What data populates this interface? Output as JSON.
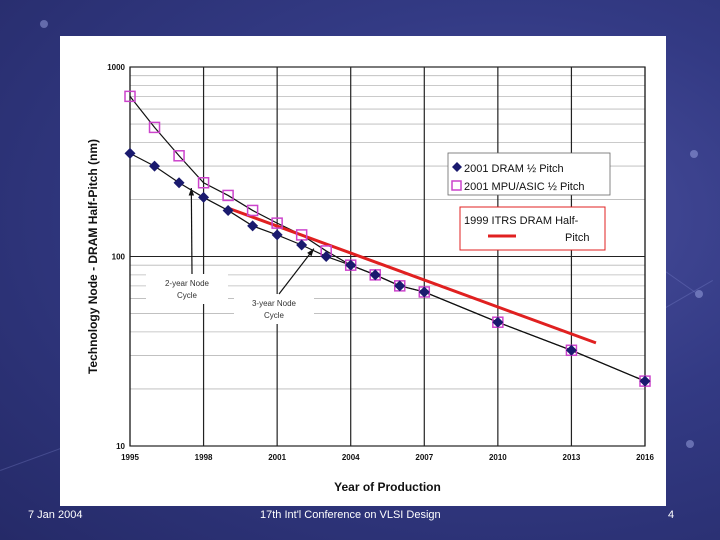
{
  "footer": {
    "date": "7 Jan 2004",
    "conference": "17th Int'l Conference on VLSI Design",
    "page_number": "4"
  },
  "colors": {
    "slide_background": "#333a84",
    "dram_series": "#1a1a6e",
    "mpu_series": "#cc44cc",
    "itrs_line": "#e02020"
  },
  "chart_data": {
    "type": "line",
    "xlabel": "Year of Production",
    "ylabel": "Technology Node - DRAM Half-Pitch (nm)",
    "xlim": [
      1995,
      2016
    ],
    "ylim": [
      10,
      1000
    ],
    "y_scale": "log",
    "grid": true,
    "x_ticks": [
      1995,
      1998,
      2001,
      2004,
      2007,
      2010,
      2013,
      2016
    ],
    "x_tick_labels": [
      "1995",
      "1998",
      "2001",
      "2004",
      "2007",
      "2010",
      "2013",
      "2016"
    ],
    "y_ticks": [
      10,
      100,
      1000
    ],
    "y_tick_labels": [
      "10",
      "100",
      "1000"
    ],
    "legend_placement": "top-right",
    "series": [
      {
        "name": "2001 DRAM ½ Pitch",
        "marker": "diamond",
        "x": [
          1995,
          1996,
          1997,
          1998,
          1999,
          2000,
          2001,
          2002,
          2003,
          2004,
          2005,
          2006,
          2007,
          2010,
          2013,
          2016
        ],
        "y": [
          350,
          300,
          245,
          205,
          175,
          145,
          130,
          115,
          100,
          90,
          80,
          70,
          65,
          45,
          32,
          22
        ]
      },
      {
        "name": "2001 MPU/ASIC ½ Pitch",
        "marker": "square",
        "x": [
          1995,
          1996,
          1997,
          1998,
          1999,
          2000,
          2001,
          2002,
          2003,
          2004,
          2005,
          2006,
          2007,
          2010,
          2013,
          2016
        ],
        "y": [
          700,
          480,
          340,
          245,
          210,
          175,
          150,
          130,
          107,
          90,
          80,
          70,
          65,
          45,
          32,
          22
        ]
      },
      {
        "name": "1999 ITRS DRAM Half-Pitch",
        "marker": "none",
        "x": [
          1999,
          2014
        ],
        "y": [
          180,
          35
        ]
      }
    ],
    "annotations": [
      {
        "text": "2-year Node",
        "text2": "Cycle",
        "pointer_x": 1997.5,
        "pointer_y": 230
      },
      {
        "text": "3-year Node",
        "text2": "Cycle",
        "pointer_x": 2002.5,
        "pointer_y": 110
      }
    ]
  }
}
